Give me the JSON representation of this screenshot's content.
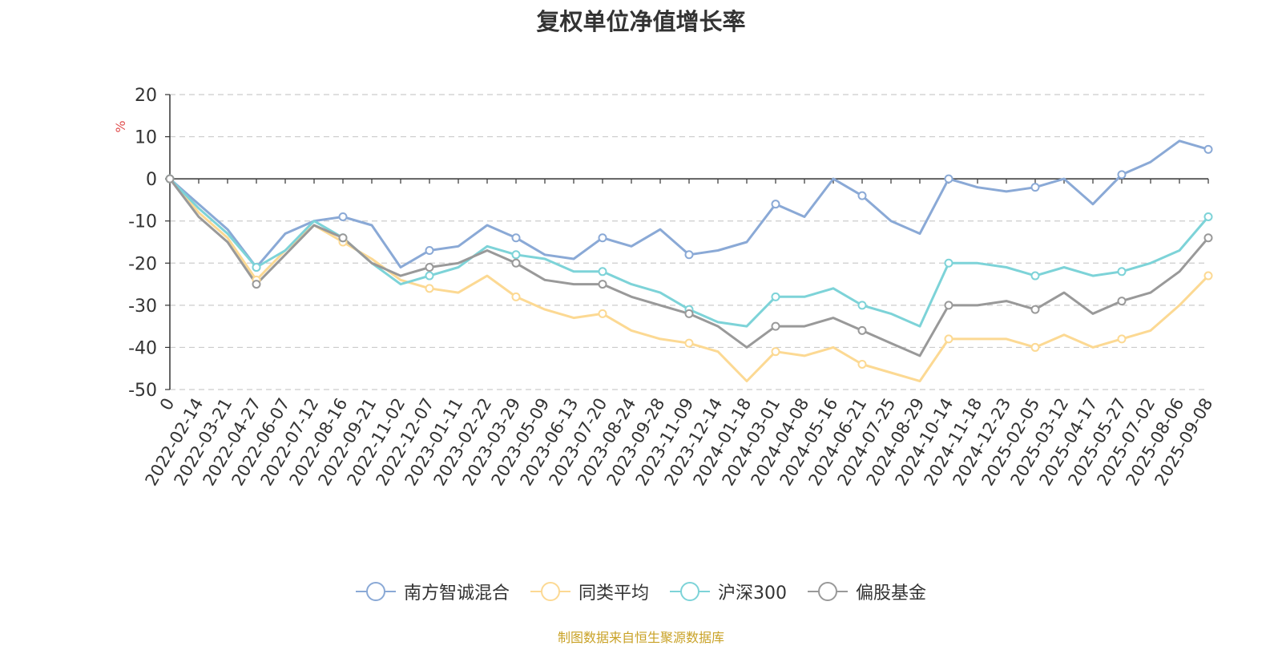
{
  "title": "复权单位净值增长率",
  "source": "制图数据来自恒生聚源数据库",
  "chart_data": {
    "type": "line",
    "title": "复权单位净值增长率",
    "ylabel": "%",
    "ylim": [
      -50,
      20
    ],
    "yticks": [
      20,
      10,
      0,
      -10,
      -20,
      -30,
      -40,
      -50
    ],
    "grid": true,
    "legend_position": "bottom-center",
    "x": [
      "0",
      "2022-02-14",
      "2022-03-21",
      "2022-04-27",
      "2022-06-07",
      "2022-07-12",
      "2022-08-16",
      "2022-09-21",
      "2022-11-02",
      "2022-12-07",
      "2023-01-11",
      "2023-02-22",
      "2023-03-29",
      "2023-05-09",
      "2023-06-13",
      "2023-07-20",
      "2023-08-24",
      "2023-09-28",
      "2023-11-09",
      "2023-12-14",
      "2024-01-18",
      "2024-03-01",
      "2024-04-08",
      "2024-05-16",
      "2024-06-21",
      "2024-07-25",
      "2024-08-29",
      "2024-10-14",
      "2024-11-18",
      "2024-12-23",
      "2025-02-05",
      "2025-03-12",
      "2025-04-17",
      "2025-05-27",
      "2025-07-02",
      "2025-08-06",
      "2025-09-08"
    ],
    "series": [
      {
        "name": "南方智诚混合",
        "color": "#8aa9d6",
        "values": [
          0,
          -6,
          -12,
          -21,
          -13,
          -10,
          -9,
          -11,
          -21,
          -17,
          -16,
          -11,
          -14,
          -18,
          -19,
          -14,
          -16,
          -12,
          -18,
          -17,
          -15,
          -6,
          -9,
          0,
          -4,
          -10,
          -13,
          0,
          -2,
          -3,
          -2,
          0,
          -6,
          1,
          4,
          9,
          7
        ]
      },
      {
        "name": "同类平均",
        "color": "#fcd993",
        "values": [
          0,
          -8,
          -14,
          -24,
          -17,
          -11,
          -15,
          -19,
          -24,
          -26,
          -27,
          -23,
          -28,
          -31,
          -33,
          -32,
          -36,
          -38,
          -39,
          -41,
          -48,
          -41,
          -42,
          -40,
          -44,
          -46,
          -48,
          -38,
          -38,
          -38,
          -40,
          -37,
          -40,
          -38,
          -36,
          -30,
          -23
        ]
      },
      {
        "name": "沪深300",
        "color": "#7dd3d8",
        "values": [
          0,
          -7,
          -13,
          -21,
          -17,
          -10,
          -14,
          -20,
          -25,
          -23,
          -21,
          -16,
          -18,
          -19,
          -22,
          -22,
          -25,
          -27,
          -31,
          -34,
          -35,
          -28,
          -28,
          -26,
          -30,
          -32,
          -35,
          -20,
          -20,
          -21,
          -23,
          -21,
          -23,
          -22,
          -20,
          -17,
          -9
        ]
      },
      {
        "name": "偏股基金",
        "color": "#999999",
        "values": [
          0,
          -9,
          -15,
          -25,
          -18,
          -11,
          -14,
          -20,
          -23,
          -21,
          -20,
          -17,
          -20,
          -24,
          -25,
          -25,
          -28,
          -30,
          -32,
          -35,
          -40,
          -35,
          -35,
          -33,
          -36,
          -39,
          -42,
          -30,
          -30,
          -29,
          -31,
          -27,
          -32,
          -29,
          -27,
          -22,
          -14
        ]
      }
    ]
  }
}
